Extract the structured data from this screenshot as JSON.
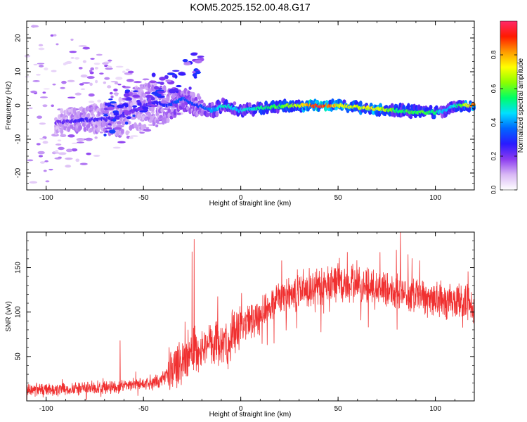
{
  "title": "KOM5.2025.152.00.48.G17",
  "chart_data": [
    {
      "type": "heatmap",
      "xlabel": "Height of straight line (km)",
      "ylabel": "Frequency (Hz)",
      "xlim": [
        -110,
        120
      ],
      "ylim": [
        -25,
        25
      ],
      "xticks": [
        -100,
        -50,
        0,
        50,
        100
      ],
      "xtick_labels": [
        "-100",
        "-50",
        "0",
        "50",
        "100"
      ],
      "yticks": [
        -20,
        -10,
        0,
        10,
        20
      ],
      "ytick_labels": [
        "-20",
        "-10",
        "0",
        "10",
        "20"
      ],
      "colorbar": {
        "label": "Normalized spectral amplitude",
        "range": [
          0,
          1
        ],
        "ticks": [
          0.0,
          0.2,
          0.4,
          0.6,
          0.8
        ],
        "tick_labels": [
          "0.0",
          "0.2",
          "0.4",
          "0.6",
          "0.8"
        ],
        "colors": [
          "#ffffff",
          "#d9b8f5",
          "#8c3cf0",
          "#2a1aff",
          "#0066ff",
          "#00dfff",
          "#00ff66",
          "#8cff00",
          "#ffff00",
          "#ff9900",
          "#ff1a00",
          "#ff2a6a"
        ]
      },
      "ridge": {
        "x": [
          -95,
          -85,
          -75,
          -65,
          -55,
          -45,
          -38,
          -30,
          -22,
          -15,
          -8,
          0,
          10,
          20,
          30,
          40,
          50,
          60,
          70,
          80,
          90,
          100,
          105,
          110,
          120
        ],
        "y": [
          -5,
          -4.5,
          -4,
          -4,
          -1.5,
          1,
          0,
          2,
          0,
          -1.5,
          0,
          -1.5,
          -0.8,
          -0.2,
          0,
          0,
          0,
          -0.5,
          -1,
          -1.5,
          -2,
          -2,
          -1.5,
          0,
          0
        ],
        "amplitude": [
          0.2,
          0.25,
          0.25,
          0.25,
          0.22,
          0.25,
          0.3,
          0.35,
          0.3,
          0.4,
          0.5,
          0.45,
          0.55,
          0.6,
          0.7,
          0.95,
          0.75,
          0.7,
          0.75,
          0.55,
          0.6,
          0.55,
          0.4,
          0.5,
          0.85
        ],
        "width_hz": [
          2,
          2,
          2.5,
          3,
          4,
          4,
          3,
          2,
          2,
          2,
          2,
          1.8,
          1.6,
          1.5,
          1.5,
          1.4,
          1.4,
          1.5,
          1.5,
          1.8,
          1.8,
          1.8,
          1.6,
          1.5,
          1.4
        ]
      },
      "scatter": {
        "x_range": [
          -110,
          -30
        ],
        "y_range": [
          -25,
          25
        ]
      }
    },
    {
      "type": "line",
      "xlabel": "Height of straight line (km)",
      "ylabel": "SNR (v/v)",
      "xlim": [
        -110,
        120
      ],
      "ylim": [
        0,
        190
      ],
      "xticks": [
        -100,
        -50,
        0,
        50,
        100
      ],
      "xtick_labels": [
        "-100",
        "-50",
        "0",
        "50",
        "100"
      ],
      "yticks": [
        50,
        100,
        150
      ],
      "ytick_labels": [
        "50",
        "100",
        "150"
      ],
      "color": "#f03030",
      "trend": {
        "x": [
          -110,
          -90,
          -70,
          -55,
          -45,
          -40,
          -35,
          -30,
          -25,
          -20,
          -10,
          0,
          10,
          20,
          30,
          40,
          50,
          60,
          70,
          80,
          90,
          100,
          110,
          120
        ],
        "y": [
          12,
          13,
          15,
          18,
          20,
          25,
          35,
          45,
          55,
          60,
          65,
          80,
          100,
          115,
          125,
          128,
          132,
          130,
          128,
          123,
          118,
          115,
          112,
          110
        ]
      },
      "spikes": [
        {
          "x": -24,
          "y": 182
        },
        {
          "x": -25,
          "y": 168
        },
        {
          "x": 21,
          "y": 158
        },
        {
          "x": 50,
          "y": 155
        },
        {
          "x": 82,
          "y": 190
        },
        {
          "x": 80,
          "y": 170
        },
        {
          "x": 86,
          "y": 165
        },
        {
          "x": 92,
          "y": 158
        },
        {
          "x": -62,
          "y": 68
        }
      ]
    }
  ]
}
